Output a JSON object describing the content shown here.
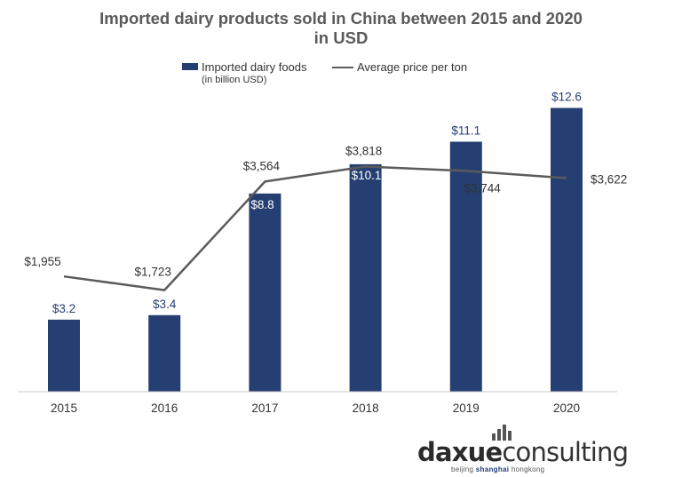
{
  "title": "Imported dairy products sold in China between 2015 and 2020 in USD",
  "title_lines": [
    "Imported dairy products sold in China between 2015 and 2020",
    "in USD"
  ],
  "legend": {
    "bar_label": "Imported dairy foods",
    "bar_sublabel": "(in billion USD)",
    "line_label": "Average price per ton"
  },
  "colors": {
    "bar": "#263f72",
    "line": "#5b5b5b",
    "bar_value_label": "#263f72"
  },
  "chart_data": {
    "type": "bar",
    "title": "Imported dairy products sold in China between 2015 and 2020 in USD",
    "categories": [
      "2015",
      "2016",
      "2017",
      "2018",
      "2019",
      "2020"
    ],
    "series": [
      {
        "name": "Imported dairy foods (in billion USD)",
        "type": "bar",
        "values": [
          3.2,
          3.4,
          8.8,
          10.1,
          11.1,
          12.6
        ],
        "labels": [
          "$3.2",
          "$3.4",
          "$8.8",
          "$10.1",
          "$11.1",
          "$12.6"
        ]
      },
      {
        "name": "Average price per ton",
        "type": "line",
        "values": [
          1955,
          1723,
          3564,
          3818,
          3744,
          3622
        ],
        "labels": [
          "$1,955",
          "$1,723",
          "$3,564",
          "$3,818",
          "$3,744",
          "$3,622"
        ]
      }
    ],
    "ylim_bar": [
      0,
      14
    ],
    "ylim_line": [
      0,
      5000
    ],
    "legend_position": "top",
    "grid": false
  },
  "logo": {
    "text_bold": "daxue",
    "text_regular": "consulting",
    "tagline_parts": [
      "beijing ",
      "shanghai",
      " hongkong"
    ]
  }
}
